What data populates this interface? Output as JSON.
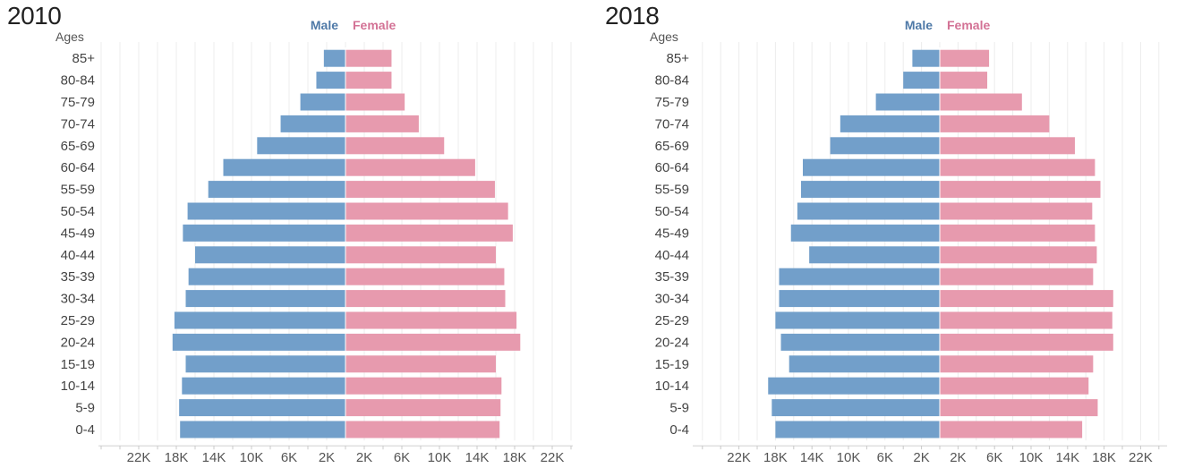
{
  "chart_data": [
    {
      "type": "bar",
      "title": "2010",
      "ylabel": "Ages",
      "legend": [
        "Male",
        "Female"
      ],
      "legend_placement": "top-center",
      "grid": true,
      "categories": [
        "85+",
        "80-84",
        "75-79",
        "70-74",
        "65-69",
        "60-64",
        "55-59",
        "50-54",
        "45-49",
        "40-44",
        "35-39",
        "30-34",
        "25-29",
        "20-24",
        "15-19",
        "10-14",
        "5-9",
        "0-4"
      ],
      "series": [
        {
          "name": "Male",
          "values": [
            2300,
            3100,
            4800,
            6900,
            9400,
            13000,
            14600,
            16800,
            17300,
            16000,
            16700,
            17000,
            18200,
            18400,
            17000,
            17400,
            17700,
            17600
          ]
        },
        {
          "name": "Female",
          "values": [
            4900,
            4900,
            6300,
            7800,
            10500,
            13800,
            15900,
            17300,
            17800,
            16000,
            16900,
            17000,
            18200,
            18600,
            16000,
            16600,
            16500,
            16400
          ]
        }
      ],
      "x_ticks": [
        "22K",
        "18K",
        "14K",
        "10K",
        "6K",
        "2K",
        "2K",
        "6K",
        "10K",
        "14K",
        "18K",
        "22K"
      ],
      "xlim": [
        -26000,
        26000
      ],
      "colors": {
        "male": "#729fca",
        "female": "#e79aae",
        "male_text": "#4e79a7",
        "female_text": "#d37295"
      }
    },
    {
      "type": "bar",
      "title": "2018",
      "ylabel": "Ages",
      "legend": [
        "Male",
        "Female"
      ],
      "legend_placement": "top-center",
      "grid": true,
      "categories": [
        "85+",
        "80-84",
        "75-79",
        "70-74",
        "65-69",
        "60-64",
        "55-59",
        "50-54",
        "45-49",
        "40-44",
        "35-39",
        "30-34",
        "25-29",
        "20-24",
        "15-19",
        "10-14",
        "5-9",
        "0-4"
      ],
      "series": [
        {
          "name": "Male",
          "values": [
            3000,
            4000,
            7000,
            10900,
            12000,
            15000,
            15200,
            15600,
            16300,
            14300,
            17600,
            17600,
            18000,
            17400,
            16500,
            18800,
            18400,
            18000
          ]
        },
        {
          "name": "Female",
          "values": [
            5400,
            5200,
            9000,
            12000,
            14800,
            17000,
            17600,
            16700,
            17000,
            17200,
            16800,
            19000,
            18900,
            19000,
            16800,
            16300,
            17300,
            15600
          ]
        }
      ],
      "x_ticks": [
        "22K",
        "18K",
        "14K",
        "10K",
        "6K",
        "2K",
        "2K",
        "6K",
        "10K",
        "14K",
        "18K",
        "22K"
      ],
      "xlim": [
        -26000,
        26000
      ],
      "colors": {
        "male": "#729fca",
        "female": "#e79aae",
        "male_text": "#4e79a7",
        "female_text": "#d37295"
      }
    }
  ]
}
